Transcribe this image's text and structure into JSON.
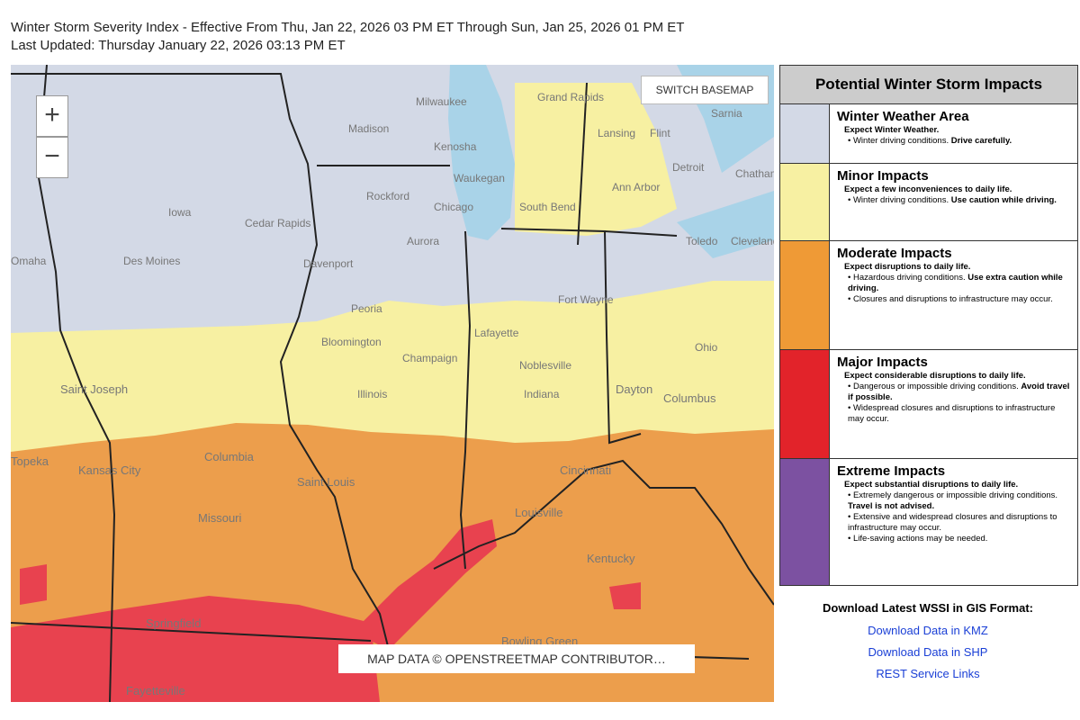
{
  "header": {
    "title": "Winter Storm Severity Index - Effective From Thu, Jan 22, 2026 03 PM ET Through Sun, Jan 25, 2026 01 PM ET",
    "updated": "Last Updated: Thursday January 22, 2026 03:13 PM ET"
  },
  "map": {
    "zoom_in": "+",
    "zoom_out": "−",
    "basemap_button": "SWITCH BASEMAP",
    "attribution": "MAP DATA © OPENSTREETMAP CONTRIBUTOR…",
    "labels": [
      "Milwaukee",
      "Grand Rapids",
      "Sarnia",
      "Madison",
      "Kenosha",
      "Lansing",
      "Flint",
      "Detroit",
      "Chatham",
      "Waukegan",
      "Ann Arbor",
      "Rockford",
      "Chicago",
      "South Bend",
      "Iowa",
      "Cedar Rapids",
      "Aurora",
      "Toledo",
      "Cleveland",
      "Omaha",
      "Des Moines",
      "Davenport",
      "Fort Wayne",
      "Peoria",
      "Lafayette",
      "Bloomington",
      "Champaign",
      "Noblesville",
      "Ohio",
      "Illinois",
      "Indiana",
      "Dayton",
      "Columbus",
      "Saint Joseph",
      "Topeka",
      "Kansas City",
      "Columbia",
      "Saint Louis",
      "Cincinnati",
      "Missouri",
      "Louisville",
      "Kentucky",
      "Springfield",
      "Bowling Green",
      "Fayetteville"
    ]
  },
  "legend": {
    "title": "Potential Winter Storm Impacts",
    "rows": [
      {
        "name": "Winter Weather Area",
        "color": "#d3d9e6",
        "summary": "Expect Winter Weather.",
        "bullets": [
          {
            "text": "Winter driving conditions. ",
            "emphasis": "Drive carefully."
          }
        ]
      },
      {
        "name": "Minor Impacts",
        "color": "#f7f0a2",
        "summary": "Expect a few inconveniences to daily life.",
        "bullets": [
          {
            "text": "Winter driving conditions. ",
            "emphasis": "Use caution while driving."
          }
        ]
      },
      {
        "name": "Moderate Impacts",
        "color": "#ef9a36",
        "summary": "Expect disruptions to daily life.",
        "bullets": [
          {
            "text": "Hazardous driving conditions. ",
            "emphasis": "Use extra caution while driving."
          },
          {
            "text": "Closures and disruptions to infrastructure may occur."
          }
        ]
      },
      {
        "name": "Major Impacts",
        "color": "#e2232a",
        "summary": "Expect considerable disruptions to daily life.",
        "bullets": [
          {
            "text": "Dangerous or impossible driving conditions. ",
            "emphasis": "Avoid travel if possible."
          },
          {
            "text": "Widespread closures and disruptions to infrastructure may occur."
          }
        ]
      },
      {
        "name": "Extreme Impacts",
        "color": "#7c51a1",
        "summary": "Expect substantial disruptions to daily life.",
        "bullets": [
          {
            "text": "Extremely dangerous or impossible driving conditions. ",
            "emphasis": "Travel is not advised."
          },
          {
            "text": "Extensive and widespread closures and disruptions to infrastructure may occur."
          },
          {
            "text": "Life-saving actions may be needed."
          }
        ]
      }
    ]
  },
  "downloads": {
    "title": "Download Latest WSSI in GIS Format:",
    "links": [
      "Download Data in KMZ",
      "Download Data in SHP",
      "REST Service Links"
    ]
  }
}
